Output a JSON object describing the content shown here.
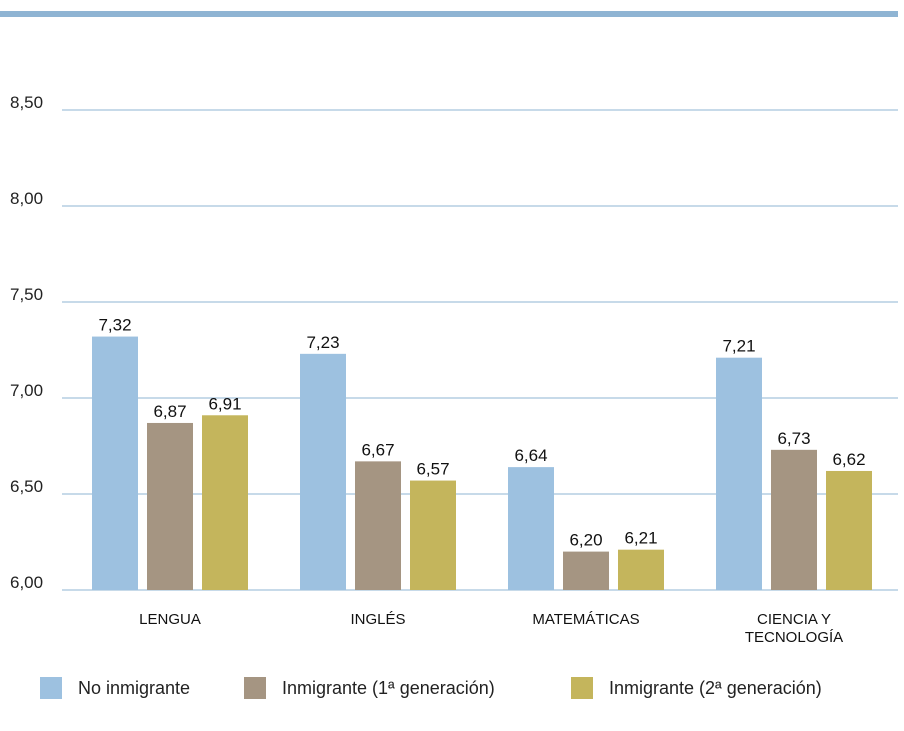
{
  "chart_data": {
    "type": "bar",
    "categories": [
      "LENGUA",
      "INGLÉS",
      "MATEMÁTICAS",
      "CIENCIA Y TECNOLOGÍA"
    ],
    "category_lines": [
      [
        "LENGUA"
      ],
      [
        "INGLÉS"
      ],
      [
        "MATEMÁTICAS"
      ],
      [
        "CIENCIA Y",
        "TECNOLOGÍA"
      ]
    ],
    "series": [
      {
        "name": "No inmigrante",
        "color": "#9dc1e0",
        "values": [
          7.32,
          7.23,
          6.64,
          7.21
        ]
      },
      {
        "name": "Inmigrante (1ª generación)",
        "color": "#a59582",
        "values": [
          6.87,
          6.67,
          6.2,
          6.73
        ]
      },
      {
        "name": "Inmigrante (2ª generación)",
        "color": "#c4b55c",
        "values": [
          6.91,
          6.57,
          6.21,
          6.62
        ]
      }
    ],
    "value_labels": [
      [
        "7,32",
        "7,23",
        "6,64",
        "7,21"
      ],
      [
        "6,87",
        "6,67",
        "6,20",
        "6,73"
      ],
      [
        "6,91",
        "6,57",
        "6,21",
        "6,62"
      ]
    ],
    "yticks": [
      6.0,
      6.5,
      7.0,
      7.5,
      8.0,
      8.5
    ],
    "ytick_labels": [
      "6,00",
      "6,50",
      "7,00",
      "7,50",
      "8,00",
      "8,50"
    ],
    "ylim": [
      6.0,
      8.5
    ],
    "title": "",
    "xlabel": "",
    "ylabel": "",
    "grid": true,
    "gridline_color": "#8fb4d3",
    "legend_position": "bottom"
  }
}
